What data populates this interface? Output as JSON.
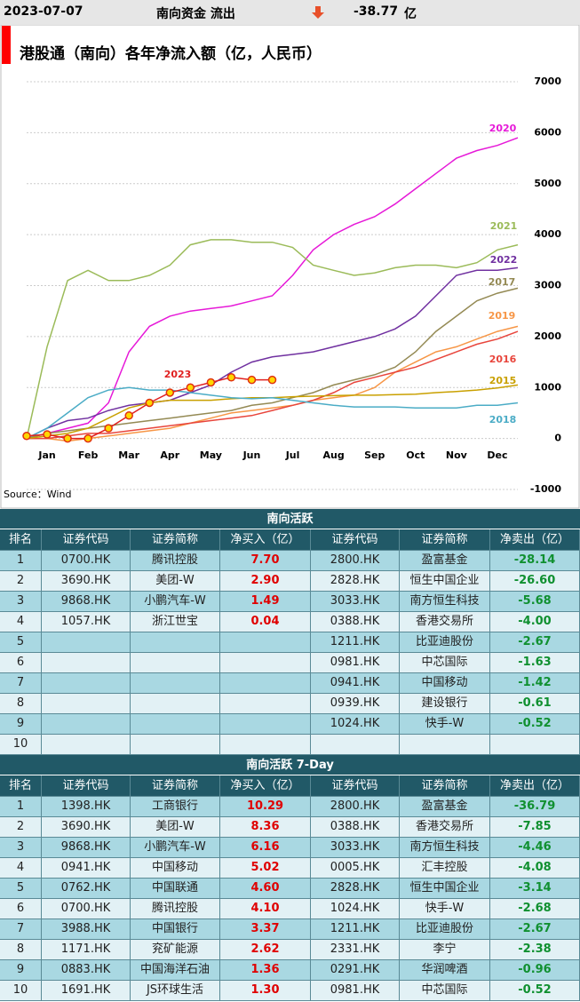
{
  "header": {
    "date": "2023-07-07",
    "label": "南向资金 流出",
    "amount": "-38.77",
    "unit": "亿"
  },
  "chart_data": {
    "type": "line",
    "title": "港股通（南向）各年净流入额（亿，人民币）",
    "source": "Source：Wind",
    "x": [
      0,
      0.5,
      1,
      1.5,
      2,
      2.5,
      3,
      3.5,
      4,
      4.5,
      5,
      5.5,
      6,
      6.5,
      7,
      7.5,
      8,
      8.5,
      9,
      9.5,
      10,
      10.5,
      11,
      11.5,
      12
    ],
    "xlim": [
      0,
      12
    ],
    "xticks": [
      {
        "value": 0.5,
        "label": "Jan"
      },
      {
        "value": 1.5,
        "label": "Feb"
      },
      {
        "value": 2.5,
        "label": "Mar"
      },
      {
        "value": 3.5,
        "label": "Apr"
      },
      {
        "value": 4.5,
        "label": "May"
      },
      {
        "value": 5.5,
        "label": "Jun"
      },
      {
        "value": 6.5,
        "label": "Jul"
      },
      {
        "value": 7.5,
        "label": "Aug"
      },
      {
        "value": 8.5,
        "label": "Sep"
      },
      {
        "value": 9.5,
        "label": "Oct"
      },
      {
        "value": 10.5,
        "label": "Nov"
      },
      {
        "value": 11.5,
        "label": "Dec"
      }
    ],
    "ylim": [
      -1000,
      7000
    ],
    "yticks": [
      -1000,
      0,
      1000,
      2000,
      3000,
      4000,
      5000,
      6000,
      7000
    ],
    "grid": true,
    "series": [
      {
        "name": "2020",
        "color": "#e619d8",
        "values": [
          0,
          100,
          200,
          300,
          700,
          1700,
          2200,
          2400,
          2500,
          2550,
          2600,
          2700,
          2800,
          3200,
          3700,
          4000,
          4200,
          4350,
          4600,
          4900,
          5200,
          5500,
          5650,
          5750,
          5900
        ]
      },
      {
        "name": "2021",
        "color": "#9bbb59",
        "values": [
          0,
          1800,
          3100,
          3300,
          3100,
          3100,
          3200,
          3400,
          3800,
          3900,
          3900,
          3850,
          3850,
          3750,
          3400,
          3300,
          3200,
          3250,
          3350,
          3400,
          3400,
          3350,
          3450,
          3700,
          3800
        ]
      },
      {
        "name": "2022",
        "color": "#7030a0",
        "values": [
          0,
          200,
          350,
          400,
          550,
          650,
          700,
          750,
          900,
          1050,
          1300,
          1500,
          1600,
          1650,
          1700,
          1800,
          1900,
          2000,
          2150,
          2400,
          2800,
          3200,
          3300,
          3300,
          3350
        ]
      },
      {
        "name": "2017",
        "color": "#948a54",
        "values": [
          0,
          100,
          150,
          200,
          250,
          300,
          350,
          400,
          450,
          500,
          550,
          650,
          700,
          800,
          900,
          1050,
          1150,
          1250,
          1400,
          1700,
          2100,
          2400,
          2700,
          2850,
          2950
        ]
      },
      {
        "name": "2019",
        "color": "#f79646",
        "values": [
          0,
          0,
          -50,
          0,
          50,
          100,
          150,
          200,
          300,
          400,
          500,
          550,
          600,
          650,
          750,
          800,
          850,
          1000,
          1300,
          1500,
          1700,
          1800,
          1950,
          2100,
          2200
        ]
      },
      {
        "name": "2016",
        "color": "#e8453c",
        "values": [
          0,
          0,
          50,
          100,
          100,
          150,
          200,
          250,
          300,
          350,
          400,
          450,
          550,
          650,
          750,
          900,
          1100,
          1200,
          1300,
          1400,
          1550,
          1700,
          1850,
          1950,
          2100
        ]
      },
      {
        "name": "2015",
        "color": "#c9a000",
        "values": [
          0,
          50,
          100,
          200,
          400,
          600,
          700,
          750,
          750,
          750,
          780,
          800,
          800,
          820,
          830,
          840,
          850,
          850,
          860,
          870,
          900,
          920,
          950,
          990,
          1050
        ]
      },
      {
        "name": "2018",
        "color": "#4bacc6",
        "values": [
          0,
          200,
          500,
          800,
          950,
          1000,
          950,
          950,
          900,
          850,
          800,
          780,
          800,
          750,
          700,
          650,
          620,
          620,
          620,
          600,
          600,
          600,
          650,
          650,
          700
        ]
      },
      {
        "name": "2023",
        "color": "#e02020",
        "values": [
          50,
          80,
          0,
          0,
          200,
          450,
          700,
          900,
          1000,
          1100,
          1200,
          1150,
          1150,
          null,
          null,
          null,
          null,
          null,
          null,
          null,
          null,
          null,
          null,
          null,
          null
        ]
      }
    ]
  },
  "tables": [
    {
      "title": "南向活跃",
      "headers": [
        "排名",
        "证券代码",
        "证券简称",
        "净买入（亿）",
        "证券代码",
        "证券简称",
        "净卖出（亿）"
      ],
      "rows": [
        [
          "1",
          "0700.HK",
          "腾讯控股",
          "7.70",
          "2800.HK",
          "盈富基金",
          "-28.14"
        ],
        [
          "2",
          "3690.HK",
          "美团-W",
          "2.90",
          "2828.HK",
          "恒生中国企业",
          "-26.60"
        ],
        [
          "3",
          "9868.HK",
          "小鹏汽车-W",
          "1.49",
          "3033.HK",
          "南方恒生科技",
          "-5.68"
        ],
        [
          "4",
          "1057.HK",
          "浙江世宝",
          "0.04",
          "0388.HK",
          "香港交易所",
          "-4.00"
        ],
        [
          "5",
          null,
          null,
          null,
          "1211.HK",
          "比亚迪股份",
          "-2.67"
        ],
        [
          "6",
          null,
          null,
          null,
          "0981.HK",
          "中芯国际",
          "-1.63"
        ],
        [
          "7",
          null,
          null,
          null,
          "0941.HK",
          "中国移动",
          "-1.42"
        ],
        [
          "8",
          null,
          null,
          null,
          "0939.HK",
          "建设银行",
          "-0.61"
        ],
        [
          "9",
          null,
          null,
          null,
          "1024.HK",
          "快手-W",
          "-0.52"
        ],
        [
          "10",
          null,
          null,
          null,
          null,
          null,
          null
        ]
      ]
    },
    {
      "title": "南向活跃 7-Day",
      "headers": [
        "排名",
        "证券代码",
        "证券简称",
        "净买入（亿）",
        "证券代码",
        "证券简称",
        "净卖出（亿）"
      ],
      "rows": [
        [
          "1",
          "1398.HK",
          "工商银行",
          "10.29",
          "2800.HK",
          "盈富基金",
          "-36.79"
        ],
        [
          "2",
          "3690.HK",
          "美团-W",
          "8.36",
          "0388.HK",
          "香港交易所",
          "-7.85"
        ],
        [
          "3",
          "9868.HK",
          "小鹏汽车-W",
          "6.16",
          "3033.HK",
          "南方恒生科技",
          "-4.46"
        ],
        [
          "4",
          "0941.HK",
          "中国移动",
          "5.02",
          "0005.HK",
          "汇丰控股",
          "-4.08"
        ],
        [
          "5",
          "0762.HK",
          "中国联通",
          "4.60",
          "2828.HK",
          "恒生中国企业",
          "-3.14"
        ],
        [
          "6",
          "0700.HK",
          "腾讯控股",
          "4.10",
          "1024.HK",
          "快手-W",
          "-2.68"
        ],
        [
          "7",
          "3988.HK",
          "中国银行",
          "3.37",
          "1211.HK",
          "比亚迪股份",
          "-2.67"
        ],
        [
          "8",
          "1171.HK",
          "兖矿能源",
          "2.62",
          "2331.HK",
          "李宁",
          "-2.38"
        ],
        [
          "9",
          "0883.HK",
          "中国海洋石油",
          "1.36",
          "0291.HK",
          "华润啤酒",
          "-0.96"
        ],
        [
          "10",
          "1691.HK",
          "JS环球生活",
          "1.30",
          "0981.HK",
          "中芯国际",
          "-0.52"
        ]
      ]
    }
  ]
}
